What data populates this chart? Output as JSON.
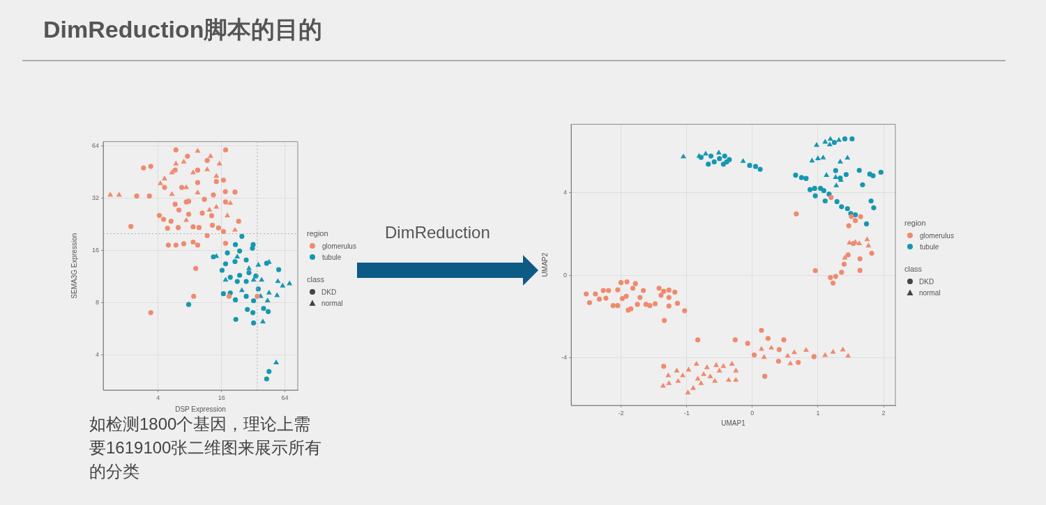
{
  "chart_data": [
    {
      "type": "scatter",
      "title": "DimReduction脚本的目的",
      "xlabel": "DSP Expression",
      "ylabel": "SEMA3G Expression",
      "legend_title": "region",
      "legend": "right",
      "grid": true,
      "log": "xy",
      "xlim": [
        1.2,
        85
      ],
      "ylim": [
        2.5,
        68
      ],
      "xticks": [
        4,
        16,
        64
      ],
      "yticks": [
        4,
        8,
        16,
        32,
        64
      ],
      "ref_lines": [
        {
          "axis": "x",
          "value": 35,
          "line_style": "dotted",
          "color": "#b0b0b0"
        },
        {
          "axis": "y",
          "value": 20,
          "line_style": "dotted",
          "color": "#b0b0b0"
        }
      ],
      "annotations": [
        "class",
        "DKD",
        "normal",
        "如检测1800个基因，理论上需要1619100张二维图来展示所有的分类"
      ],
      "series": [
        {
          "name": "glomerulus",
          "color": "#ef8a6f",
          "marker": "circle",
          "x": [
            5.9,
            17.5,
            2.9,
            3.4,
            2.5,
            3.3,
            2.2,
            3.4,
            8.7,
            9.1,
            8.6,
            9.5,
            7,
            5.9,
            5,
            4.9,
            6.2,
            4.1,
            4.5,
            5.3,
            8.6,
            9.8,
            11.7,
            13.1,
            15,
            16.7,
            17.5,
            23.3,
            21.5,
            17.4,
            16.7,
            11.7,
            7.6,
            9.5,
            5.8,
            4.6,
            6.3,
            7.4,
            11,
            13.4,
            10.5,
            6.7,
            5.8,
            17.5,
            7.8,
            12.9,
            9.5,
            14.3,
            18.9,
            35,
            7.8
          ],
          "values": [
            61,
            61,
            48,
            49,
            33,
            33,
            22,
            7,
            8.7,
            12.6,
            17.9,
            17.2,
            17.5,
            17.2,
            17.2,
            21.5,
            21.7,
            25.5,
            24.2,
            23.6,
            21.9,
            21.7,
            19.5,
            22.4,
            21.6,
            20.6,
            17.6,
            23.6,
            34.8,
            35,
            40.8,
            53,
            56,
            46.6,
            46.6,
            37,
            27.4,
            30.5,
            31.6,
            33.5,
            26.3,
            37,
            29.6,
            30.5,
            25.9,
            25.4,
            39.5,
            40,
            8.7,
            8.7,
            30.8
          ]
        },
        {
          "color": "#ef8a6f",
          "marker": "triangle",
          "x": [
            1.4,
            1.7,
            9.5,
            12.6,
            15.3,
            5.9,
            7,
            5.4,
            4.2,
            4.6,
            8.6,
            11.7,
            14.3,
            7.4,
            9.5,
            19.4,
            18.2,
            7.4,
            21.5,
            12.3,
            5.4,
            14.3
          ],
          "values": [
            33.5,
            33.5,
            60,
            56,
            50.7,
            50.7,
            52,
            45,
            39,
            41.5,
            45,
            46.9,
            43,
            37,
            34.5,
            30,
            25.4,
            23.9,
            21,
            27.4,
            33.8,
            28.5
          ]
        },
        {
          "name": "tubule",
          "color": "#1697b0",
          "marker": "circle",
          "x": [
            25,
            7.8,
            32,
            31.5,
            21.7,
            23.8,
            13.4,
            18.2,
            16.2,
            17.5,
            21.5,
            27.5,
            19.4,
            23.8,
            29.2,
            16.7,
            19.4,
            22.6,
            27.5,
            32.3,
            21.7,
            28.2,
            31.8,
            21.9,
            32.3,
            40.2,
            44.5,
            43,
            56,
            35.8,
            27.5,
            43,
            45.3,
            34
          ],
          "values": [
            19.3,
            7.8,
            17.3,
            16.5,
            17.3,
            15.9,
            14.7,
            15.5,
            12.3,
            13.4,
            13.8,
            14.1,
            11.2,
            11.5,
            11.9,
            9,
            9.1,
            10.6,
            8.7,
            8.2,
            8.3,
            7.3,
            7,
            6.4,
            6.1,
            7.4,
            7.1,
            13.5,
            12.4,
            9.6,
            10.6,
            2.9,
            3.2,
            11.4
          ]
        },
        {
          "color": "#1697b0",
          "marker": "triangle",
          "x": [
            53,
            61,
            71,
            55,
            54,
            45.3,
            38.5,
            45.3,
            35.8,
            39.6,
            37.7,
            29.2,
            32.3,
            17.5,
            22.6,
            25,
            43.9,
            14.3
          ],
          "values": [
            3.6,
            10,
            10.3,
            10.6,
            8.8,
            9.1,
            10.8,
            13.7,
            13.2,
            6.2,
            8.7,
            12.6,
            10.8,
            10.8,
            14.7,
            9.4,
            8.2,
            14.8
          ]
        }
      ]
    },
    {
      "type": "scatter",
      "xlabel": "UMAP1",
      "ylabel": "UMAP2",
      "legend_title": "region",
      "legend": "right",
      "grid": true,
      "xlim": [
        -2.76,
        2.18
      ],
      "ylim": [
        -6.3,
        7.3
      ],
      "xticks": [
        -2,
        -1,
        0,
        1,
        2
      ],
      "yticks": [
        -4,
        0,
        4
      ],
      "annotations": [
        "class",
        "DKD",
        "normal",
        "DimReduction"
      ],
      "series": [
        {
          "name": "glomerulus",
          "color": "#ef8a6f",
          "marker": "circle",
          "x": [
            -2.53,
            -2.48,
            -2.39,
            -2.33,
            -2.27,
            -2.23,
            -2.19,
            -2.12,
            -2.05,
            -2.05,
            -2,
            -1.98,
            -1.91,
            -1.89,
            -1.85,
            -1.82,
            -1.78,
            -1.75,
            -1.71,
            -1.66,
            -1.62,
            -1.56,
            -1.48,
            -1.42,
            -1.39,
            -1.35,
            -1.27,
            -1.27,
            -1.27,
            -1.18,
            -1.14,
            -1.03,
            -1.34,
            -1.92,
            -1.35,
            -0.83,
            -0.26,
            -0.07,
            0.03,
            0.14,
            0.24,
            0.19,
            0.48,
            0.41,
            0.4,
            0.7,
            0.94,
            0.67,
            0.96,
            1.19,
            1.27,
            1.23,
            1.36,
            1.4,
            1.46,
            1.64,
            1.64,
            1.82,
            1.47,
            1.57,
            1.65,
            1.51,
            1.2,
            1.54
          ],
          "values": [
            -0.91,
            -1.33,
            -0.91,
            -1.16,
            -0.74,
            -1.11,
            -0.74,
            -1.47,
            -0.71,
            -1.47,
            -0.36,
            -1.13,
            -0.32,
            -1.69,
            -1.63,
            -0.63,
            -0.41,
            -1.41,
            -1.08,
            -0.74,
            -1.41,
            -1.47,
            -1.38,
            -0.63,
            -0.97,
            -0.78,
            -0.72,
            -1.49,
            -1.08,
            -0.82,
            -1.36,
            -1.72,
            -2.19,
            -1.02,
            -4.41,
            -3.13,
            -3.13,
            -3.3,
            -3.86,
            -2.67,
            -3.06,
            -4.89,
            -3.13,
            -3.6,
            -4.16,
            -4.22,
            -3.94,
            2.96,
            0.22,
            -0.11,
            -0.06,
            -0.38,
            0.14,
            0.53,
            0.98,
            0.79,
            0.23,
            1.06,
            2.39,
            2.64,
            2.83,
            2.84,
            3.76,
            1.53
          ]
        },
        {
          "color": "#ef8a6f",
          "marker": "triangle",
          "x": [
            -1.36,
            -1.27,
            -1.28,
            -1.15,
            -1.13,
            -1.06,
            -0.98,
            -0.97,
            -0.9,
            -0.85,
            -0.83,
            -0.78,
            -0.74,
            -0.69,
            -0.64,
            -0.57,
            -0.55,
            -0.5,
            -0.44,
            -0.36,
            -0.31,
            -0.25,
            -0.25,
            0.14,
            0.18,
            0.29,
            0.54,
            0.58,
            0.64,
            0.82,
            1.11,
            1.23,
            1.38,
            1.46,
            1.48,
            1.57,
            1.63,
            1.75,
            1.77,
            1.41
          ],
          "values": [
            -5.36,
            -5.24,
            -4.86,
            -4.63,
            -5.13,
            -4.86,
            -5.69,
            -4.58,
            -5.47,
            -4.3,
            -5.02,
            -5.24,
            -4.8,
            -4.47,
            -4.91,
            -5.13,
            -4.36,
            -4.63,
            -4.41,
            -5.08,
            -4.3,
            -4.63,
            -5.08,
            -3.58,
            -3.97,
            -3.52,
            -3.91,
            -4.28,
            -3.74,
            -3.63,
            -3.88,
            -3.72,
            -3.61,
            -3.91,
            1.56,
            1.59,
            1.53,
            1.72,
            1.42,
            0.84
          ]
        },
        {
          "name": "tubule",
          "color": "#1697b0",
          "marker": "circle",
          "x": [
            -0.78,
            -0.67,
            -0.58,
            -0.63,
            -0.5,
            -0.44,
            -0.39,
            -0.42,
            -0.35,
            -0.04,
            0.05,
            0.12,
            0.66,
            0.75,
            0.82,
            0.88,
            0.95,
            0.96,
            1.04,
            1.09,
            1.11,
            1.17,
            1.27,
            1.29,
            1.36,
            1.45,
            1.5,
            1.57,
            1.63,
            1.68,
            1.79,
            1.84,
            1.96,
            1.81,
            1.85,
            1.74,
            1.43,
            1.34,
            1.41,
            1.52,
            1.25
          ],
          "values": [
            5.7,
            5.37,
            5.48,
            5.76,
            5.64,
            5.37,
            5.48,
            5.76,
            5.59,
            5.31,
            5.26,
            5.12,
            4.84,
            4.72,
            4.68,
            4.14,
            4.2,
            3.84,
            4.2,
            4.09,
            3.59,
            3.92,
            5.06,
            3.56,
            3.31,
            3.22,
            2.98,
            2.92,
            5.07,
            4.37,
            4.89,
            4.81,
            4.98,
            3.59,
            3.26,
            2.48,
            4.87,
            4.7,
            6.59,
            6.59,
            6.42
          ]
        },
        {
          "color": "#1697b0",
          "marker": "triangle",
          "x": [
            -1.05,
            -0.81,
            -0.71,
            -0.51,
            -0.14,
            0.98,
            0.91,
            1,
            1.08,
            1.34,
            1.45,
            1.13,
            1.27,
            1.35,
            1.28,
            1.11,
            1.18,
            1.19,
            1.32
          ],
          "values": [
            5.73,
            5.76,
            5.87,
            5.92,
            5.51,
            6.29,
            5.53,
            5.64,
            5.68,
            5.48,
            5.67,
            4.83,
            4.73,
            4.59,
            4.33,
            6.44,
            6.31,
            6.58,
            6.53
          ]
        }
      ]
    }
  ]
}
